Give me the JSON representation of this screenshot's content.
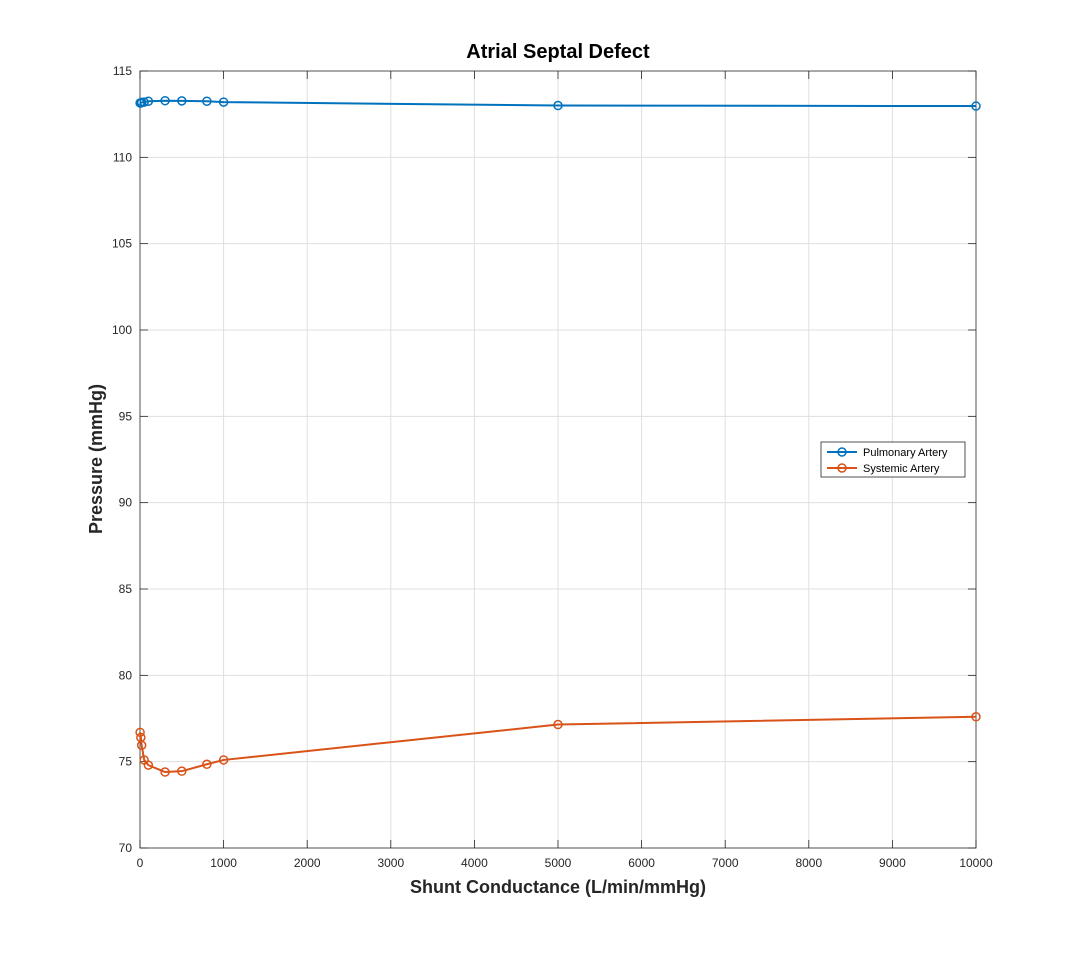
{
  "chart_data": {
    "type": "line",
    "title": "Atrial Septal Defect",
    "xlabel": "Shunt Conductance (L/min/mmHg)",
    "ylabel": "Pressure (mmHg)",
    "xlim": [
      0,
      10000
    ],
    "ylim": [
      70,
      115
    ],
    "xticks": [
      0,
      1000,
      2000,
      3000,
      4000,
      5000,
      6000,
      7000,
      8000,
      9000,
      10000
    ],
    "yticks": [
      70,
      75,
      80,
      85,
      90,
      95,
      100,
      105,
      110,
      115
    ],
    "grid": true,
    "legend_position": "right",
    "marker": "circle",
    "series": [
      {
        "name": "Pulmonary Artery",
        "color": "#0072BD",
        "x": [
          1,
          10,
          20,
          50,
          100,
          300,
          500,
          800,
          1000,
          5000,
          10000
        ],
        "y": [
          113.15,
          113.15,
          113.18,
          113.2,
          113.25,
          113.28,
          113.27,
          113.25,
          113.2,
          113.0,
          112.97
        ]
      },
      {
        "name": "Systemic Artery",
        "color": "#D95319",
        "x": [
          1,
          10,
          20,
          50,
          100,
          300,
          500,
          800,
          1000,
          5000,
          10000
        ],
        "y": [
          76.7,
          76.4,
          75.95,
          75.1,
          74.8,
          74.4,
          74.45,
          74.85,
          75.1,
          77.15,
          77.6
        ]
      }
    ]
  }
}
